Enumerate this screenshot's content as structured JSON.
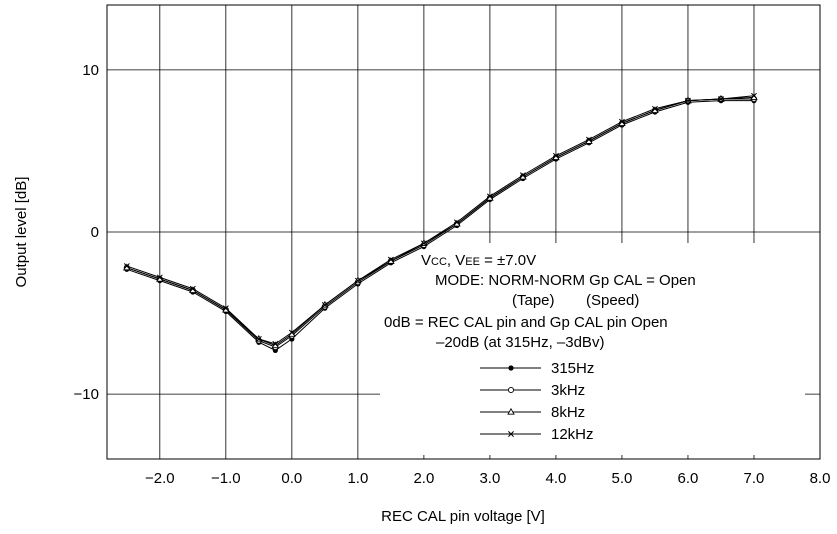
{
  "chart_data": {
    "type": "line",
    "xlabel": "REC CAL pin voltage [V]",
    "ylabel": "Output level [dB]",
    "xlim": [
      -2.8,
      8.0
    ],
    "ylim": [
      -14,
      14
    ],
    "x_ticks": [
      -2.0,
      -1.0,
      0.0,
      1.0,
      2.0,
      3.0,
      4.0,
      5.0,
      6.0,
      7.0,
      8.0
    ],
    "x_tick_labels": [
      "−2.0",
      "−1.0",
      "0.0",
      "1.0",
      "2.0",
      "3.0",
      "4.0",
      "5.0",
      "6.0",
      "7.0",
      "8.0"
    ],
    "y_ticks": [
      -10,
      0,
      10
    ],
    "y_tick_labels": [
      "−10",
      "0",
      "10"
    ],
    "grid": true,
    "legend_position": "center-right",
    "annotations": [
      "VCC, VEE = ±7.0V",
      "MODE: NORM-NORM Gp CAL = Open",
      "(Tape)",
      "(Speed)",
      "0dB = REC CAL pin and Gp CAL pin Open",
      "–20dB (at 315Hz, –3dBv)"
    ],
    "x": [
      -2.5,
      -2.0,
      -1.5,
      -1.0,
      -0.5,
      -0.25,
      0.0,
      0.5,
      1.0,
      1.5,
      2.0,
      2.5,
      3.0,
      3.5,
      4.0,
      4.5,
      5.0,
      5.5,
      6.0,
      6.5,
      7.0
    ],
    "series": [
      {
        "name": "315Hz",
        "marker": "dot",
        "values": [
          -2.3,
          -3.0,
          -3.7,
          -4.9,
          -6.8,
          -7.3,
          -6.6,
          -4.7,
          -3.2,
          -1.9,
          -0.9,
          0.4,
          2.0,
          3.3,
          4.5,
          5.5,
          6.6,
          7.4,
          8.0,
          8.1,
          8.1
        ]
      },
      {
        "name": "3kHz",
        "marker": "circle",
        "values": [
          -2.2,
          -2.9,
          -3.6,
          -4.8,
          -6.7,
          -7.1,
          -6.4,
          -4.6,
          -3.1,
          -1.8,
          -0.8,
          0.5,
          2.1,
          3.4,
          4.6,
          5.6,
          6.7,
          7.5,
          8.1,
          8.2,
          8.2
        ]
      },
      {
        "name": "8kHz",
        "marker": "triangle",
        "values": [
          -2.2,
          -2.9,
          -3.6,
          -4.8,
          -6.6,
          -7.0,
          -6.3,
          -4.5,
          -3.0,
          -1.8,
          -0.7,
          0.5,
          2.1,
          3.4,
          4.6,
          5.6,
          6.7,
          7.5,
          8.1,
          8.2,
          8.3
        ]
      },
      {
        "name": "12kHz",
        "marker": "x",
        "values": [
          -2.1,
          -2.8,
          -3.5,
          -4.7,
          -6.6,
          -6.9,
          -6.2,
          -4.5,
          -3.0,
          -1.7,
          -0.7,
          0.6,
          2.2,
          3.5,
          4.7,
          5.7,
          6.8,
          7.6,
          8.1,
          8.2,
          8.4
        ]
      }
    ]
  }
}
